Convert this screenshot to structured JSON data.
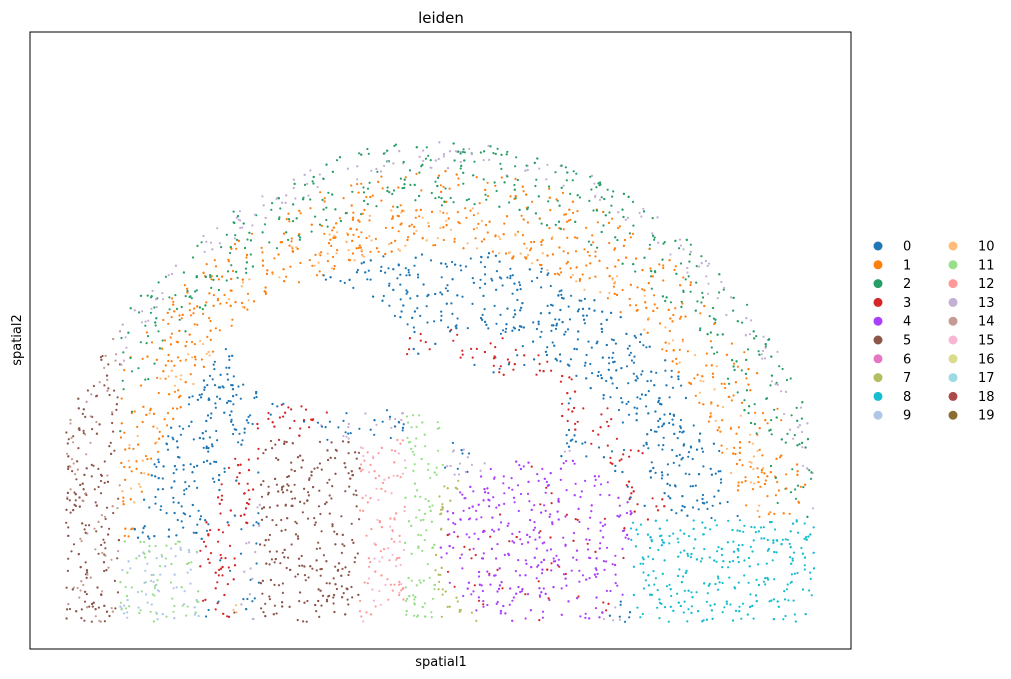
{
  "chart_data": {
    "type": "scatter",
    "title": "leiden",
    "xlabel": "spatial1",
    "ylabel": "spatial2",
    "grid": false,
    "legend_placement": "right",
    "x_ticks_visible": false,
    "y_ticks_visible": false,
    "legend": [
      {
        "label": "0",
        "color": "#1f77b4"
      },
      {
        "label": "1",
        "color": "#ff7f0e"
      },
      {
        "label": "2",
        "color": "#279e68"
      },
      {
        "label": "3",
        "color": "#d62728"
      },
      {
        "label": "4",
        "color": "#aa40fc"
      },
      {
        "label": "5",
        "color": "#8c564b"
      },
      {
        "label": "6",
        "color": "#e377c2"
      },
      {
        "label": "7",
        "color": "#b5bd61"
      },
      {
        "label": "8",
        "color": "#17becf"
      },
      {
        "label": "9",
        "color": "#aec7e8"
      },
      {
        "label": "10",
        "color": "#ffbb78"
      },
      {
        "label": "11",
        "color": "#98df8a"
      },
      {
        "label": "12",
        "color": "#ff9896"
      },
      {
        "label": "13",
        "color": "#c5b0d5"
      },
      {
        "label": "14",
        "color": "#c49c94"
      },
      {
        "label": "15",
        "color": "#f7b6d2"
      },
      {
        "label": "16",
        "color": "#dbdb8d"
      },
      {
        "label": "17",
        "color": "#9edae5"
      },
      {
        "label": "18",
        "color": "#ad494a"
      },
      {
        "label": "19",
        "color": "#8c6d31"
      }
    ]
  }
}
